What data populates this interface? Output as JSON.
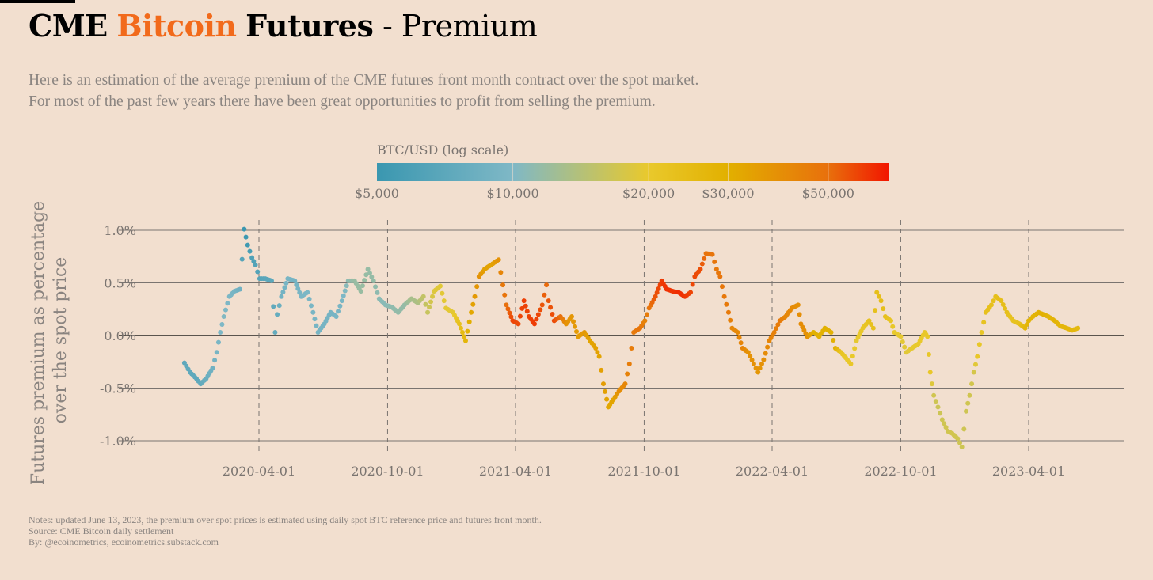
{
  "title": {
    "part1": "CME",
    "part2": "Bitcoin",
    "part3": "Futures",
    "part4": "- Premium"
  },
  "subtitle": [
    "Here is an estimation of the average premium of the CME futures front month contract over the spot market.",
    "For most of the past few years there have been great opportunities to profit from selling the premium."
  ],
  "notes": [
    "Notes: updated June 13, 2023, the premium over spot prices is estimated using daily spot BTC reference price and futures front month.",
    "Source: CME Bitcoin daily settlement",
    "By: @ecoinometrics, ecoinometrics.substack.com"
  ],
  "chart_data": {
    "type": "scatter",
    "title": "CME Bitcoin Futures - Premium",
    "xlabel": "",
    "ylabel": [
      "Futures premium as percentage",
      "over the spot price"
    ],
    "x_unit": "days since 2020-04-01",
    "xlim": [
      -120,
      1240
    ],
    "ylim": [
      -1.15,
      1.2
    ],
    "y_ticks": [
      1.0,
      0.5,
      0.0,
      -0.5,
      -1.0
    ],
    "y_tick_labels": [
      "1.0%",
      "0.5%",
      "0.0%",
      "-0.5%",
      "-1.0%"
    ],
    "x_ticks": [
      0,
      183,
      365,
      548,
      730,
      913,
      1095
    ],
    "x_tick_labels": [
      "2020-04-01",
      "2020-10-01",
      "2021-04-01",
      "2021-10-01",
      "2022-04-01",
      "2022-10-01",
      "2023-04-01"
    ],
    "grid": "horizontal solid at y ticks, vertical dashed at x ticks",
    "color_legend": {
      "title": "BTC/USD (log scale)",
      "range": [
        5000,
        68000
      ],
      "ticks": [
        5000,
        10000,
        20000,
        30000,
        50000
      ],
      "tick_labels": [
        "$5,000",
        "$10,000",
        "$20,000",
        "$30,000",
        "$50,000"
      ],
      "stops": [
        [
          5000,
          "#3a97b0"
        ],
        [
          10000,
          "#7fb8c6"
        ],
        [
          20000,
          "#e9c92c"
        ],
        [
          30000,
          "#e2b000"
        ],
        [
          50000,
          "#e8700c"
        ],
        [
          68000,
          "#f21600"
        ]
      ],
      "placement": "top-center"
    },
    "points": [
      [
        -106,
        -0.26,
        7200
      ],
      [
        -98,
        -0.35,
        7300
      ],
      [
        -89,
        -0.41,
        7200
      ],
      [
        -83,
        -0.46,
        7400
      ],
      [
        -75,
        -0.41,
        8100
      ],
      [
        -66,
        -0.31,
        8700
      ],
      [
        -60,
        -0.16,
        9300
      ],
      [
        -55,
        0.03,
        9800
      ],
      [
        -50,
        0.18,
        10200
      ],
      [
        -42,
        0.37,
        9700
      ],
      [
        -35,
        0.42,
        9300
      ],
      [
        -27,
        0.44,
        8700
      ],
      [
        -21,
        1.01,
        5000
      ],
      [
        -16,
        0.86,
        5300
      ],
      [
        -10,
        0.74,
        6200
      ],
      [
        -5,
        0.67,
        6400
      ],
      [
        1,
        0.54,
        6600
      ],
      [
        9,
        0.54,
        7000
      ],
      [
        18,
        0.52,
        7100
      ],
      [
        23,
        0.03,
        7600
      ],
      [
        26,
        0.2,
        7700
      ],
      [
        32,
        0.37,
        8800
      ],
      [
        41,
        0.54,
        9500
      ],
      [
        51,
        0.52,
        9000
      ],
      [
        60,
        0.37,
        9600
      ],
      [
        69,
        0.41,
        9700
      ],
      [
        77,
        0.22,
        9400
      ],
      [
        84,
        0.03,
        9300
      ],
      [
        93,
        0.11,
        9100
      ],
      [
        102,
        0.22,
        9200
      ],
      [
        110,
        0.18,
        9300
      ],
      [
        118,
        0.33,
        9500
      ],
      [
        127,
        0.52,
        11000
      ],
      [
        136,
        0.52,
        11700
      ],
      [
        145,
        0.42,
        11800
      ],
      [
        155,
        0.63,
        11600
      ],
      [
        163,
        0.52,
        11500
      ],
      [
        171,
        0.35,
        10800
      ],
      [
        180,
        0.29,
        10700
      ],
      [
        189,
        0.27,
        11100
      ],
      [
        198,
        0.22,
        11400
      ],
      [
        207,
        0.29,
        11500
      ],
      [
        217,
        0.35,
        13000
      ],
      [
        226,
        0.31,
        13500
      ],
      [
        234,
        0.37,
        15500
      ],
      [
        240,
        0.22,
        16000
      ],
      [
        249,
        0.42,
        18500
      ],
      [
        258,
        0.47,
        19000
      ],
      [
        266,
        0.26,
        19300
      ],
      [
        276,
        0.22,
        19200
      ],
      [
        285,
        0.11,
        23000
      ],
      [
        294,
        -0.05,
        27000
      ],
      [
        302,
        0.22,
        32000
      ],
      [
        307,
        0.37,
        36000
      ],
      [
        313,
        0.56,
        38000
      ],
      [
        321,
        0.63,
        34000
      ],
      [
        330,
        0.67,
        33000
      ],
      [
        341,
        0.72,
        38000
      ],
      [
        347,
        0.48,
        47000
      ],
      [
        352,
        0.29,
        50000
      ],
      [
        361,
        0.14,
        58000
      ],
      [
        369,
        0.11,
        57000
      ],
      [
        377,
        0.33,
        59000
      ],
      [
        384,
        0.18,
        58000
      ],
      [
        392,
        0.11,
        60000
      ],
      [
        403,
        0.29,
        55000
      ],
      [
        409,
        0.48,
        51000
      ],
      [
        412,
        0.33,
        55000
      ],
      [
        420,
        0.14,
        57000
      ],
      [
        429,
        0.18,
        50000
      ],
      [
        437,
        0.11,
        38000
      ],
      [
        445,
        0.18,
        37000
      ],
      [
        454,
        -0.01,
        35000
      ],
      [
        463,
        0.03,
        36000
      ],
      [
        471,
        -0.05,
        33000
      ],
      [
        479,
        -0.12,
        34000
      ],
      [
        484,
        -0.2,
        33000
      ],
      [
        490,
        -0.46,
        35000
      ],
      [
        497,
        -0.68,
        32000
      ],
      [
        504,
        -0.61,
        33000
      ],
      [
        512,
        -0.53,
        39000
      ],
      [
        521,
        -0.46,
        42000
      ],
      [
        527,
        -0.27,
        45000
      ],
      [
        533,
        0.03,
        46000
      ],
      [
        542,
        0.07,
        48000
      ],
      [
        549,
        0.14,
        43000
      ],
      [
        555,
        0.26,
        48000
      ],
      [
        564,
        0.37,
        55000
      ],
      [
        573,
        0.52,
        60000
      ],
      [
        580,
        0.44,
        62000
      ],
      [
        589,
        0.42,
        61000
      ],
      [
        597,
        0.41,
        63000
      ],
      [
        606,
        0.37,
        61000
      ],
      [
        614,
        0.41,
        58000
      ],
      [
        620,
        0.56,
        57000
      ],
      [
        628,
        0.63,
        56000
      ],
      [
        636,
        0.78,
        49000
      ],
      [
        645,
        0.77,
        48000
      ],
      [
        651,
        0.63,
        47000
      ],
      [
        656,
        0.56,
        48000
      ],
      [
        662,
        0.37,
        47000
      ],
      [
        668,
        0.22,
        46000
      ],
      [
        673,
        0.07,
        42000
      ],
      [
        681,
        0.03,
        41000
      ],
      [
        688,
        -0.12,
        43000
      ],
      [
        696,
        -0.16,
        38000
      ],
      [
        704,
        -0.27,
        38000
      ],
      [
        710,
        -0.35,
        37000
      ],
      [
        718,
        -0.23,
        39000
      ],
      [
        726,
        -0.05,
        42000
      ],
      [
        733,
        0.03,
        44000
      ],
      [
        741,
        0.14,
        46000
      ],
      [
        749,
        0.18,
        42000
      ],
      [
        758,
        0.26,
        41000
      ],
      [
        767,
        0.29,
        39000
      ],
      [
        771,
        0.11,
        40000
      ],
      [
        780,
        -0.01,
        38000
      ],
      [
        789,
        0.03,
        30000
      ],
      [
        797,
        -0.01,
        29000
      ],
      [
        805,
        0.07,
        30000
      ],
      [
        814,
        0.03,
        29000
      ],
      [
        820,
        -0.12,
        30000
      ],
      [
        828,
        -0.16,
        22000
      ],
      [
        837,
        -0.23,
        20000
      ],
      [
        842,
        -0.27,
        20500
      ],
      [
        850,
        -0.05,
        19500
      ],
      [
        859,
        0.07,
        21000
      ],
      [
        868,
        0.14,
        22500
      ],
      [
        874,
        0.07,
        23000
      ],
      [
        879,
        0.41,
        23500
      ],
      [
        885,
        0.33,
        24000
      ],
      [
        891,
        0.18,
        23000
      ],
      [
        899,
        0.14,
        21500
      ],
      [
        904,
        0.03,
        20000
      ],
      [
        913,
        -0.01,
        19500
      ],
      [
        921,
        -0.16,
        19000
      ],
      [
        929,
        -0.12,
        19500
      ],
      [
        938,
        -0.08,
        20000
      ],
      [
        947,
        0.03,
        20500
      ],
      [
        951,
        -0.01,
        20800
      ],
      [
        955,
        -0.35,
        20500
      ],
      [
        960,
        -0.57,
        17000
      ],
      [
        966,
        -0.68,
        16500
      ],
      [
        972,
        -0.8,
        16800
      ],
      [
        980,
        -0.91,
        17000
      ],
      [
        986,
        -0.93,
        17200
      ],
      [
        994,
        -0.98,
        16900
      ],
      [
        1000,
        -1.06,
        16700
      ],
      [
        1006,
        -0.72,
        16800
      ],
      [
        1011,
        -0.57,
        17000
      ],
      [
        1017,
        -0.35,
        17500
      ],
      [
        1022,
        -0.2,
        20500
      ],
      [
        1028,
        0.03,
        21000
      ],
      [
        1034,
        0.22,
        23000
      ],
      [
        1042,
        0.29,
        23000
      ],
      [
        1048,
        0.37,
        23500
      ],
      [
        1056,
        0.33,
        24000
      ],
      [
        1064,
        0.22,
        23500
      ],
      [
        1073,
        0.14,
        22000
      ],
      [
        1082,
        0.11,
        23000
      ],
      [
        1090,
        0.07,
        27000
      ],
      [
        1095,
        0.14,
        28000
      ],
      [
        1101,
        0.18,
        28000
      ],
      [
        1109,
        0.22,
        29000
      ],
      [
        1116,
        0.2,
        30000
      ],
      [
        1123,
        0.18,
        28000
      ],
      [
        1132,
        0.14,
        28500
      ],
      [
        1140,
        0.09,
        27000
      ],
      [
        1149,
        0.07,
        27000
      ],
      [
        1157,
        0.05,
        26500
      ],
      [
        1165,
        0.07,
        26000
      ]
    ]
  }
}
